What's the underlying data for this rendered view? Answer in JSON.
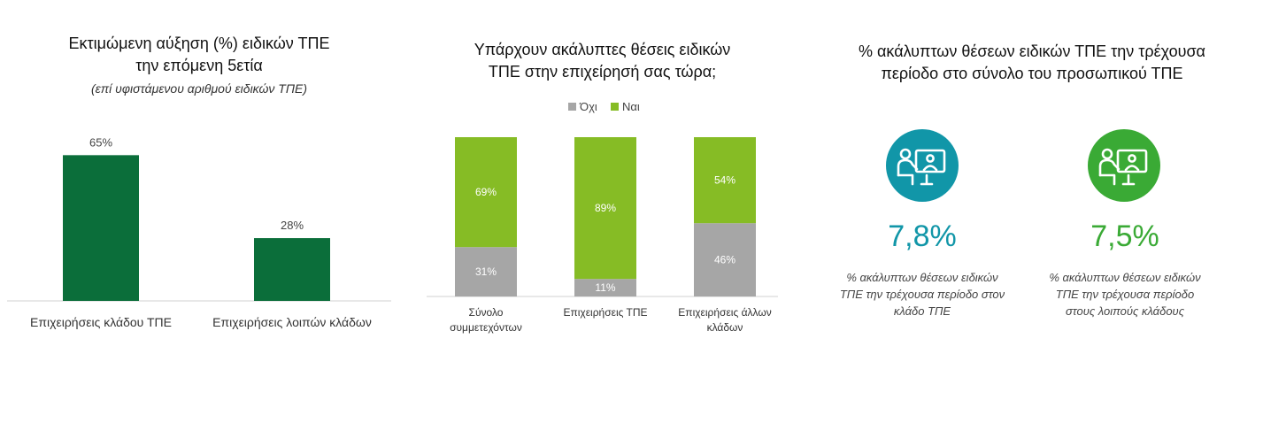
{
  "panel1": {
    "title_line1": "Εκτιμώμενη αύξηση (%) ειδικών ΤΠΕ",
    "title_line2": "την επόμενη 5ετία",
    "subtitle": "(επί υφιστάμενου αριθμού ειδικών ΤΠΕ)"
  },
  "panel2": {
    "title_line1": "Υπάρχουν ακάλυπτες θέσεις ειδικών",
    "title_line2": "ΤΠΕ στην επιχείρησή σας τώρα;"
  },
  "panel3": {
    "title_line1": "% ακάλυπτων θέσεων ειδικών ΤΠΕ την τρέχουσα",
    "title_line2": "περίοδο στο σύνολο του προσωπικού ΤΠΕ",
    "kpis": [
      {
        "value": "7,8%",
        "desc_lines": [
          "% ακάλυπτων θέσεων ειδικών",
          "ΤΠΕ την τρέχουσα περίοδο στον",
          "κλάδο ΤΠΕ"
        ],
        "icon": "person-at-computer-icon",
        "color": "#1196a8"
      },
      {
        "value": "7,5%",
        "desc_lines": [
          "% ακάλυπτων θέσεων ειδικών",
          "ΤΠΕ την τρέχουσα περίοδο",
          "στους λοιπούς κλάδους"
        ],
        "icon": "person-at-computer-icon",
        "color": "#3aaa35"
      }
    ]
  },
  "chart_data": [
    {
      "type": "bar",
      "categories": [
        "Επιχειρήσεις κλάδου ΤΠΕ",
        "Επιχειρήσεις λοιπών κλάδων"
      ],
      "values": [
        65,
        28
      ],
      "data_labels": [
        "65%",
        "28%"
      ],
      "ylim": [
        0,
        75
      ],
      "grid": false,
      "color": "#0b6e3a"
    },
    {
      "type": "bar",
      "stacked": true,
      "categories": [
        [
          "Σύνολο",
          "συμμετεχόντων"
        ],
        [
          "Επιχειρήσεις ΤΠΕ"
        ],
        [
          "Επιχειρήσεις άλλων",
          "κλάδων"
        ]
      ],
      "series": [
        {
          "name": "Όχι",
          "values": [
            31,
            11,
            46
          ],
          "labels": [
            "31%",
            "11%",
            "46%"
          ],
          "color": "#a6a6a6"
        },
        {
          "name": "Ναι",
          "values": [
            69,
            89,
            54
          ],
          "labels": [
            "69%",
            "89%",
            "54%"
          ],
          "color": "#86bc25"
        }
      ],
      "ylim": [
        0,
        100
      ],
      "legend": "top-center",
      "grid": false
    }
  ]
}
